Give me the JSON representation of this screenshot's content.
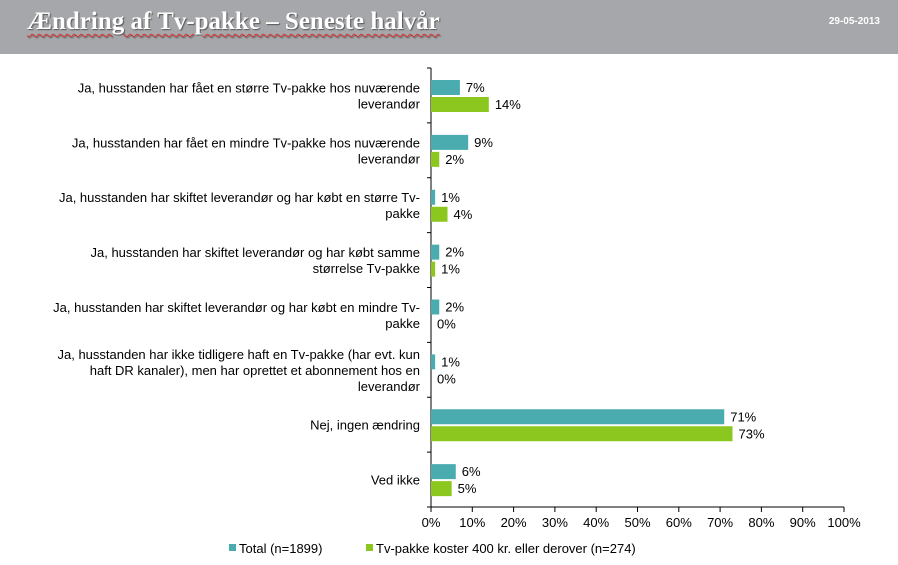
{
  "header": {
    "title": "Ændring af Tv-pakke – Seneste halvår",
    "date": "29-05-2013"
  },
  "colors": {
    "header_bg": "#a6a7aa",
    "total": "#4bacb0",
    "tv400": "#8cc71f"
  },
  "chart_data": {
    "type": "bar",
    "orientation": "horizontal",
    "categories": [
      [
        "Ja, husstanden har fået en større Tv-pakke hos nuværende",
        "leverandør"
      ],
      [
        "Ja, husstanden har fået en mindre Tv-pakke hos nuværende",
        "leverandør"
      ],
      [
        "Ja, husstanden har skiftet leverandør og har købt en større Tv-",
        "pakke"
      ],
      [
        "Ja, husstanden har skiftet leverandør og har købt samme",
        "størrelse Tv-pakke"
      ],
      [
        "Ja, husstanden har skiftet leverandør og har købt en mindre Tv-",
        "pakke"
      ],
      [
        "Ja, husstanden har ikke tidligere haft en Tv-pakke (har evt. kun",
        "haft DR kanaler), men har oprettet et abonnement hos en",
        "leverandør"
      ],
      [
        "Nej, ingen ændring"
      ],
      [
        "Ved ikke"
      ]
    ],
    "series": [
      {
        "name": "Total (n=1899)",
        "values": [
          7,
          9,
          1,
          2,
          2,
          1,
          71,
          6
        ],
        "labels": [
          "7%",
          "9%",
          "1%",
          "2%",
          "2%",
          "1%",
          "71%",
          "6%"
        ]
      },
      {
        "name": "Tv-pakke koster 400 kr. eller derover (n=274)",
        "values": [
          14,
          2,
          4,
          1,
          0,
          0,
          73,
          5
        ],
        "labels": [
          "14%",
          "2%",
          "4%",
          "1%",
          "0%",
          "0%",
          "73%",
          "5%"
        ]
      }
    ],
    "xlim": [
      0,
      100
    ],
    "xticks": [
      "0%",
      "10%",
      "20%",
      "30%",
      "40%",
      "50%",
      "60%",
      "70%",
      "80%",
      "90%",
      "100%"
    ],
    "legend": "bottom",
    "grid": false
  }
}
